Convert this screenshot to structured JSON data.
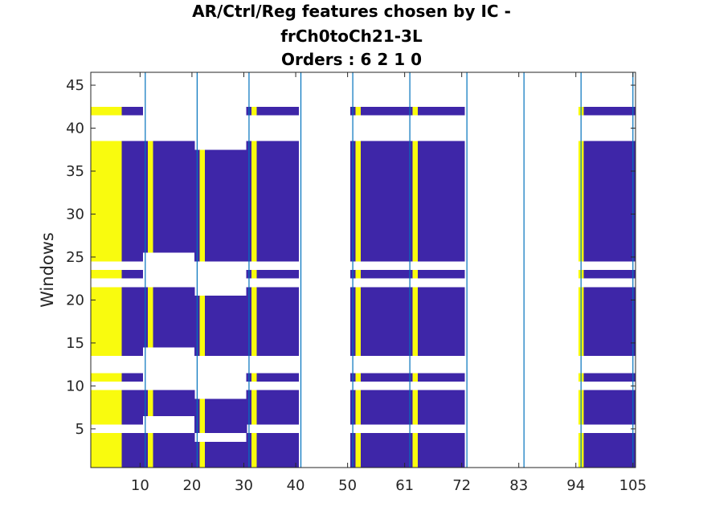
{
  "chart_data": {
    "type": "heatmap",
    "title_lines": [
      "AR/Ctrl/Reg features chosen by IC -",
      "frCh0toCh21-3L",
      "Orders : 6 2 1 0"
    ],
    "xlabel": "",
    "ylabel": "Windows",
    "xlim": [
      0.5,
      105.5
    ],
    "ylim": [
      0.5,
      46.5
    ],
    "x_ticks": [
      10,
      20,
      30,
      40,
      50,
      61,
      72,
      83,
      94,
      105
    ],
    "y_ticks": [
      5,
      10,
      15,
      20,
      25,
      30,
      35,
      40,
      45
    ],
    "grid": false,
    "colors": {
      "background": "#ffffff",
      "low": "#3e26a8",
      "high": "#f9fb0e",
      "separator": "#0072bd",
      "axis": "#262626"
    },
    "separators_x": [
      11,
      21,
      31,
      41,
      51,
      62,
      73,
      84,
      95,
      105
    ],
    "segments": [
      {
        "x": [
          1,
          10
        ],
        "windows": [
          1,
          2,
          3,
          4,
          6,
          7,
          8,
          9,
          11,
          14,
          15,
          16,
          17,
          18,
          19,
          20,
          21,
          23,
          25,
          26,
          27,
          28,
          29,
          30,
          31,
          32,
          33,
          34,
          35,
          36,
          37,
          38,
          42
        ],
        "yellow_cols": [
          1,
          2,
          3,
          4,
          5,
          6
        ]
      },
      {
        "x": [
          11,
          20
        ],
        "windows": [
          1,
          2,
          3,
          4,
          7,
          8,
          9,
          15,
          16,
          17,
          18,
          19,
          20,
          21,
          26,
          27,
          28,
          29,
          30,
          31,
          32,
          33,
          34,
          35,
          36,
          37,
          38
        ],
        "yellow_cols": [
          12
        ]
      },
      {
        "x": [
          21,
          30
        ],
        "windows": [
          1,
          2,
          3,
          5,
          6,
          7,
          8,
          14,
          15,
          16,
          17,
          18,
          19,
          20,
          25,
          26,
          27,
          28,
          29,
          30,
          31,
          32,
          33,
          34,
          35,
          36,
          37
        ],
        "yellow_cols": [
          22
        ]
      },
      {
        "x": [
          31,
          40
        ],
        "windows": [
          1,
          2,
          3,
          4,
          6,
          7,
          8,
          9,
          11,
          14,
          15,
          16,
          17,
          18,
          19,
          20,
          21,
          23,
          25,
          26,
          27,
          28,
          29,
          30,
          31,
          32,
          33,
          34,
          35,
          36,
          37,
          38,
          42
        ],
        "yellow_cols": [
          32
        ]
      },
      {
        "x": [
          41,
          50
        ],
        "windows": [],
        "yellow_cols": []
      },
      {
        "x": [
          51,
          61
        ],
        "windows": [
          1,
          2,
          3,
          4,
          6,
          7,
          8,
          9,
          11,
          14,
          15,
          16,
          17,
          18,
          19,
          20,
          21,
          23,
          25,
          26,
          27,
          28,
          29,
          30,
          31,
          32,
          33,
          34,
          35,
          36,
          37,
          38,
          42
        ],
        "yellow_cols": [
          52
        ]
      },
      {
        "x": [
          62,
          72
        ],
        "windows": [
          1,
          2,
          3,
          4,
          6,
          7,
          8,
          9,
          11,
          14,
          15,
          16,
          17,
          18,
          19,
          20,
          21,
          23,
          25,
          26,
          27,
          28,
          29,
          30,
          31,
          32,
          33,
          34,
          35,
          36,
          37,
          38,
          42
        ],
        "yellow_cols": [
          63
        ]
      },
      {
        "x": [
          73,
          83
        ],
        "windows": [],
        "yellow_cols": []
      },
      {
        "x": [
          84,
          94
        ],
        "windows": [],
        "yellow_cols": []
      },
      {
        "x": [
          95,
          105
        ],
        "windows": [
          1,
          2,
          3,
          4,
          6,
          7,
          8,
          9,
          11,
          14,
          15,
          16,
          17,
          18,
          19,
          20,
          21,
          23,
          25,
          26,
          27,
          28,
          29,
          30,
          31,
          32,
          33,
          34,
          35,
          36,
          37,
          38,
          42
        ],
        "yellow_cols": [
          95
        ]
      }
    ]
  }
}
